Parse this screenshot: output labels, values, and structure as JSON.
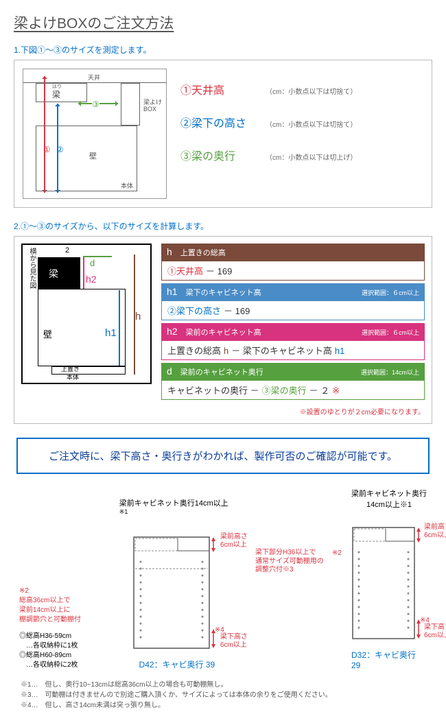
{
  "title": "梁よけBOXのご注文方法",
  "step1": {
    "label": "1.下図①～③のサイズを測定します。",
    "diagram": {
      "ceiling": "天井",
      "beam_ruby": "はり",
      "beam": "梁",
      "box": "梁よけ\nBOX",
      "wall": "壁",
      "body": "本体",
      "n1": "①",
      "n2": "②",
      "n3": "③"
    },
    "measures": [
      {
        "num": "①",
        "label": "天井高",
        "color": "#d9333f",
        "note": "（cm：小数点以下は切捨て）"
      },
      {
        "num": "②",
        "label": "梁下の高さ",
        "color": "#0070c8",
        "note": "（cm：小数点以下は切捨て）"
      },
      {
        "num": "③",
        "label": "梁の奥行",
        "color": "#56a040",
        "note": "（cm：小数点以下は切上げ）"
      }
    ]
  },
  "step2": {
    "label": "2.①～③のサイズから、以下のサイズを計算します。",
    "diagram": {
      "sidelabel": "横から見た図",
      "top2": "2",
      "beam": "梁",
      "d": "d",
      "h2": "h2",
      "h": "h",
      "h1": "h1",
      "wall": "壁",
      "okiki": "上置き",
      "body": "本体"
    },
    "calcs": [
      {
        "var": "h",
        "title": "上置きの総高",
        "range": "",
        "head_bg": "#7b4a3a",
        "border": "#7b4a3a",
        "body_parts": [
          {
            "text": "①天井高",
            "color": "#d9333f"
          },
          {
            "text": " － 169",
            "color": "#333"
          }
        ]
      },
      {
        "var": "h1",
        "title": "梁下のキャビネット高",
        "range": "選択範囲：６cm以上",
        "head_bg": "#4a8cc7",
        "border": "#4a8cc7",
        "body_parts": [
          {
            "text": "②梁下の高さ",
            "color": "#0070c8"
          },
          {
            "text": " － 169",
            "color": "#333"
          }
        ]
      },
      {
        "var": "h2",
        "title": "梁前のキャビネット高",
        "range": "選択範囲：６cm以上",
        "head_bg": "#d8337e",
        "border": "#d8337e",
        "body_parts": [
          {
            "text": "上置きの総高 ",
            "color": "#333"
          },
          {
            "text": "h",
            "color": "#7b4a3a"
          },
          {
            "text": " － 梁下のキャビネット高 ",
            "color": "#333"
          },
          {
            "text": "h1",
            "color": "#0070c8"
          }
        ]
      },
      {
        "var": "d",
        "title": "梁前のキャビネット奥行",
        "range": "選択範囲：14cm以上",
        "head_bg": "#56a040",
        "border": "#56a040",
        "body_parts": [
          {
            "text": "キャビネットの奥行 － ",
            "color": "#333"
          },
          {
            "text": "③梁の奥行",
            "color": "#56a040"
          },
          {
            "text": " － ２",
            "color": "#333"
          },
          {
            "text": "※",
            "color": "#d9333f"
          }
        ]
      }
    ],
    "asterisk": "※設置のゆとりが２cm必要になります。"
  },
  "notice": "ご注文時に、梁下高さ・奥行きがわかれば、製作可否のご確認が可能です。",
  "cabinets": {
    "left_notes": {
      "l1": "※2",
      "l2": "総高36cm以上で\n梁前14cm以上に\n棚調節穴と可動棚付",
      "l3": "◎総高H36-59cm\n　…各収納枠に1枚\n◎総高H60-89cm\n　…各収納枠に2枚"
    },
    "col1": {
      "top": "梁前キャビネット奥行14cm以上",
      "sup": "※1",
      "beam_h": "梁前高さ\n6cm以上",
      "under_h": "梁下高さ\n6cm以上",
      "sup4": "※4",
      "caption": "D42：キャビ奥行 39"
    },
    "middle_note": "梁下部分H36以上で\n通常サイズ可動棚用の\n調整穴付※3",
    "col2": {
      "top": "梁前キャビネット奥行\n14cm以上※1",
      "sup2": "※2",
      "beam_h": "梁前高さ\n6cm以上",
      "under_h": "梁下高さ\n6cm以上",
      "sup4": "※4",
      "caption": "D32：キャビ奥行 29"
    }
  },
  "footnotes": [
    "※1…　但し、奥行10~13cmは総高36cm以上の場合も可動棚無し。",
    "※3…　可動棚は付きませんので別途ご購入頂くか、サイズによっては本体の余りをご使用ください。",
    "※4…　但し、高さ14cm未満は突っ張り無し。"
  ]
}
